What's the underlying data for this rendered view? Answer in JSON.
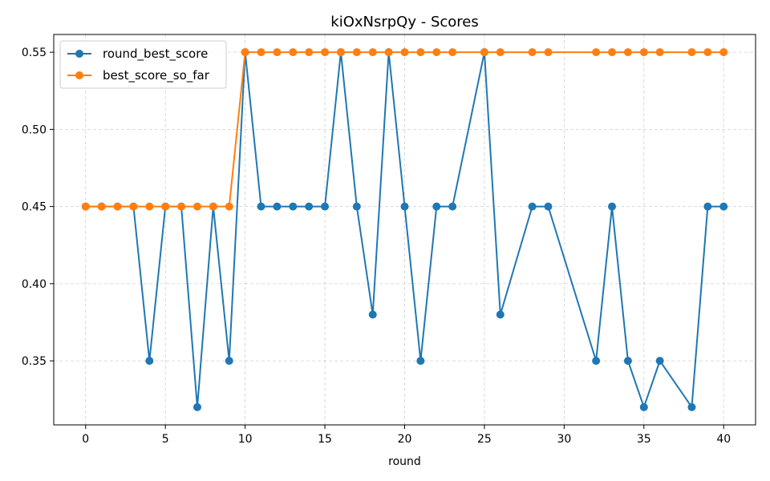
{
  "chart_data": {
    "type": "line",
    "title": "kiOxNsrpQy - Scores",
    "xlabel": "round",
    "ylabel": "",
    "xlim": [
      -2,
      42
    ],
    "ylim": [
      0.3085,
      0.5615
    ],
    "xticks": [
      0,
      5,
      10,
      15,
      20,
      25,
      30,
      35,
      40
    ],
    "yticks": [
      0.35,
      0.4,
      0.45,
      0.5,
      0.55
    ],
    "ytick_labels": [
      "0.35",
      "0.40",
      "0.45",
      "0.50",
      "0.55"
    ],
    "grid": true,
    "legend_position": "upper-left",
    "series": [
      {
        "name": "round_best_score",
        "color": "#1f77b4",
        "points": [
          [
            0,
            0.45
          ],
          [
            1,
            0.45
          ],
          [
            2,
            0.45
          ],
          [
            3,
            0.45
          ],
          [
            4,
            0.35
          ],
          [
            5,
            0.45
          ],
          [
            6,
            0.45
          ],
          [
            7,
            0.32
          ],
          [
            8,
            0.45
          ],
          [
            9,
            0.35
          ],
          [
            10,
            0.55
          ],
          [
            11,
            0.45
          ],
          [
            12,
            0.45
          ],
          [
            13,
            0.45
          ],
          [
            14,
            0.45
          ],
          [
            15,
            0.45
          ],
          [
            16,
            0.55
          ],
          [
            17,
            0.45
          ],
          [
            18,
            0.38
          ],
          [
            19,
            0.55
          ],
          [
            20,
            0.45
          ],
          [
            21,
            0.35
          ],
          [
            22,
            0.45
          ],
          [
            23,
            0.45
          ],
          [
            25,
            0.55
          ],
          [
            26,
            0.38
          ],
          [
            28,
            0.45
          ],
          [
            29,
            0.45
          ],
          [
            32,
            0.35
          ],
          [
            33,
            0.45
          ],
          [
            34,
            0.35
          ],
          [
            35,
            0.32
          ],
          [
            36,
            0.35
          ],
          [
            38,
            0.32
          ],
          [
            39,
            0.45
          ],
          [
            40,
            0.45
          ]
        ]
      },
      {
        "name": "best_score_so_far",
        "color": "#ff7f0e",
        "points": [
          [
            0,
            0.45
          ],
          [
            1,
            0.45
          ],
          [
            2,
            0.45
          ],
          [
            3,
            0.45
          ],
          [
            4,
            0.45
          ],
          [
            5,
            0.45
          ],
          [
            6,
            0.45
          ],
          [
            7,
            0.45
          ],
          [
            8,
            0.45
          ],
          [
            9,
            0.45
          ],
          [
            10,
            0.55
          ],
          [
            11,
            0.55
          ],
          [
            12,
            0.55
          ],
          [
            13,
            0.55
          ],
          [
            14,
            0.55
          ],
          [
            15,
            0.55
          ],
          [
            16,
            0.55
          ],
          [
            17,
            0.55
          ],
          [
            18,
            0.55
          ],
          [
            19,
            0.55
          ],
          [
            20,
            0.55
          ],
          [
            21,
            0.55
          ],
          [
            22,
            0.55
          ],
          [
            23,
            0.55
          ],
          [
            25,
            0.55
          ],
          [
            26,
            0.55
          ],
          [
            28,
            0.55
          ],
          [
            29,
            0.55
          ],
          [
            32,
            0.55
          ],
          [
            33,
            0.55
          ],
          [
            34,
            0.55
          ],
          [
            35,
            0.55
          ],
          [
            36,
            0.55
          ],
          [
            38,
            0.55
          ],
          [
            39,
            0.55
          ],
          [
            40,
            0.55
          ]
        ]
      }
    ]
  }
}
